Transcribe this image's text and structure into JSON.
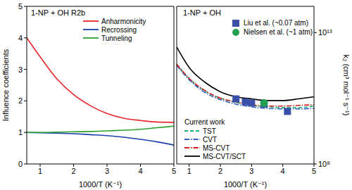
{
  "chart_data": [
    {
      "type": "line",
      "title": "1-NP + OH  R2b",
      "x_label": "1000/T (K⁻¹)",
      "y_label": "Influence coefficients",
      "xlim": [
        0.6,
        5
      ],
      "xticks": [
        1,
        2,
        3,
        4,
        5
      ],
      "ylim": [
        0,
        5
      ],
      "yticks": [
        0,
        1,
        2,
        3,
        4,
        5
      ],
      "legend": "upper right",
      "x": [
        0.6,
        1,
        1.5,
        2,
        2.5,
        3,
        3.5,
        4,
        4.5,
        5
      ],
      "series": [
        {
          "name": "Anharmonicity",
          "color": "#e8262b",
          "values": [
            4.0,
            3.4,
            2.7,
            2.2,
            1.85,
            1.6,
            1.45,
            1.38,
            1.33,
            1.32
          ]
        },
        {
          "name": "Recrossing",
          "color": "#1a3fa8",
          "values": [
            1.0,
            0.99,
            0.98,
            0.96,
            0.93,
            0.9,
            0.85,
            0.78,
            0.7,
            0.6
          ]
        },
        {
          "name": "Tunneling",
          "color": "#2ca02c",
          "values": [
            1.0,
            1.0,
            1.01,
            1.02,
            1.03,
            1.05,
            1.07,
            1.1,
            1.15,
            1.2
          ]
        }
      ]
    },
    {
      "type": "line",
      "title": "1-NP + OH",
      "x_label": "1000/T (K⁻¹)",
      "y_label": "k₂ (cm³ mol⁻¹ s⁻¹)",
      "log": "y",
      "xlim": [
        0.6,
        5
      ],
      "xticks": [
        1,
        2,
        3,
        4,
        5
      ],
      "ylim": [
        100000000.0,
        100000000000000.0
      ],
      "yticks": [
        {
          "value": 100000000.0,
          "label": "10⁸"
        },
        {
          "value": 10000000000000.0,
          "label": "10¹³"
        }
      ],
      "legend": "lower left",
      "annotation": "Current work",
      "series": [
        {
          "name": "Liu et al. (~0.07 atm)",
          "type": "scatter",
          "marker": "square",
          "color": "#3a4fa8",
          "x": [
            2.5,
            2.8,
            3.0,
            3.4,
            4.15
          ],
          "values": [
            30000000000.0,
            23000000000.0,
            21000000000.0,
            19000000000.0,
            10000000000.0
          ]
        },
        {
          "name": "Nielsen et al. (~1 atm)",
          "type": "scatter",
          "marker": "circle",
          "color": "#20a050",
          "x": [
            3.4
          ],
          "values": [
            21000000000.0
          ]
        },
        {
          "name": "TST",
          "type": "line",
          "line_style": "dashed",
          "color": "#20b070",
          "x": [
            0.6,
            1,
            1.5,
            2,
            2.5,
            3,
            3.5,
            4,
            4.5,
            5
          ],
          "values": [
            630000000000.0,
            180000000000.0,
            60000000000.0,
            32000000000.0,
            22000000000.0,
            17000000000.0,
            15000000000.0,
            14000000000.0,
            14000000000.0,
            16000000000.0
          ]
        },
        {
          "name": "CVT",
          "type": "line",
          "line_style": "dashdot",
          "color": "#3060c0",
          "x": [
            0.6,
            1,
            1.5,
            2,
            2.5,
            3,
            3.5,
            4,
            4.5,
            5
          ],
          "values": [
            560000000000.0,
            160000000000.0,
            53000000000.0,
            28000000000.0,
            19000000000.0,
            15000000000.0,
            13000000000.0,
            12500000000.0,
            12500000000.0,
            13000000000.0
          ]
        },
        {
          "name": "MS-CVT",
          "type": "line",
          "line_style": "dashdot",
          "color": "#d02020",
          "x": [
            0.6,
            1,
            1.5,
            2,
            2.5,
            3,
            3.5,
            4,
            4.5,
            5
          ],
          "values": [
            630000000000.0,
            180000000000.0,
            63000000000.0,
            32000000000.0,
            23000000000.0,
            18000000000.0,
            16000000000.0,
            16000000000.0,
            17000000000.0,
            18000000000.0
          ]
        },
        {
          "name": "MS-CVT/SCT",
          "type": "line",
          "line_style": "solid",
          "color": "#000000",
          "x": [
            0.6,
            1,
            1.5,
            2,
            2.5,
            3,
            3.5,
            4,
            4.5,
            5
          ],
          "values": [
            2800000000000.0,
            470000000000.0,
            130000000000.0,
            56000000000.0,
            36000000000.0,
            30000000000.0,
            26000000000.0,
            26000000000.0,
            30000000000.0,
            36000000000.0
          ]
        }
      ]
    }
  ]
}
